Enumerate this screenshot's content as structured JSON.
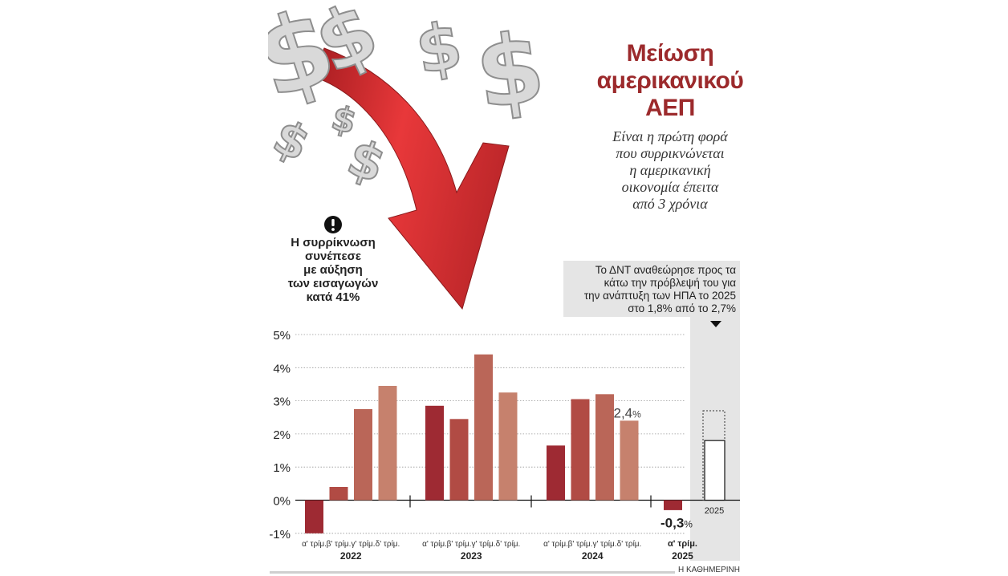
{
  "headline": {
    "line1": "Μείωση",
    "line2": "αμερικανικού",
    "line3": "ΑΕΠ"
  },
  "subhead": [
    "Είναι η πρώτη φορά",
    "που συρρικνώνεται",
    "η αμερικανική",
    "οικονομία έπειτα",
    "από 3 χρόνια"
  ],
  "note": {
    "icon": "exclamation-circle-icon",
    "lines": [
      "Η συρρίκνωση",
      "συνέπεσε",
      "με αύξηση",
      "των εισαγωγών",
      "κατά 41%"
    ]
  },
  "forecast_note": [
    "Το ΔΝΤ αναθεώρησε προς τα",
    "κάτω την πρόβλεψή του για",
    "την ανάπτυξη των ΗΠΑ το 2025",
    "στο 1,8% από το 2,7%"
  ],
  "credit": "Η ΚΑΘΗΜΕΡΙΝΗ",
  "colors": {
    "headline": "#9c2a2c",
    "q1": "#9e2a33",
    "q2": "#b14b44",
    "q3": "#ba6658",
    "q4": "#c6816d",
    "forecast_panel": "#e5e5e5"
  },
  "chart_data": {
    "type": "bar",
    "yticks": [
      "5%",
      "4%",
      "3%",
      "2%",
      "1%",
      "0%",
      "-1%"
    ],
    "ylim": [
      -1,
      5
    ],
    "quarter_labels": [
      "α' τρίμ.",
      "β' τρίμ.",
      "γ' τρίμ.",
      "δ' τρίμ."
    ],
    "groups": [
      {
        "year": "2022",
        "values": [
          -1.0,
          0.4,
          2.75,
          3.45
        ]
      },
      {
        "year": "2023",
        "values": [
          2.85,
          2.45,
          4.4,
          3.25
        ]
      },
      {
        "year": "2024",
        "values": [
          1.65,
          3.05,
          3.2,
          2.4
        ]
      },
      {
        "year": "2025",
        "values": [
          -0.3
        ]
      }
    ],
    "annotations": [
      {
        "text": "2,4",
        "unit": "%",
        "group": 2,
        "index": 3
      },
      {
        "text": "-0,3",
        "unit": "%",
        "group": 3,
        "index": 0
      }
    ],
    "last_quarter_label": "α' τρίμ.",
    "forecast": {
      "label": "2025",
      "value": 1.8,
      "previous": 2.7
    }
  }
}
